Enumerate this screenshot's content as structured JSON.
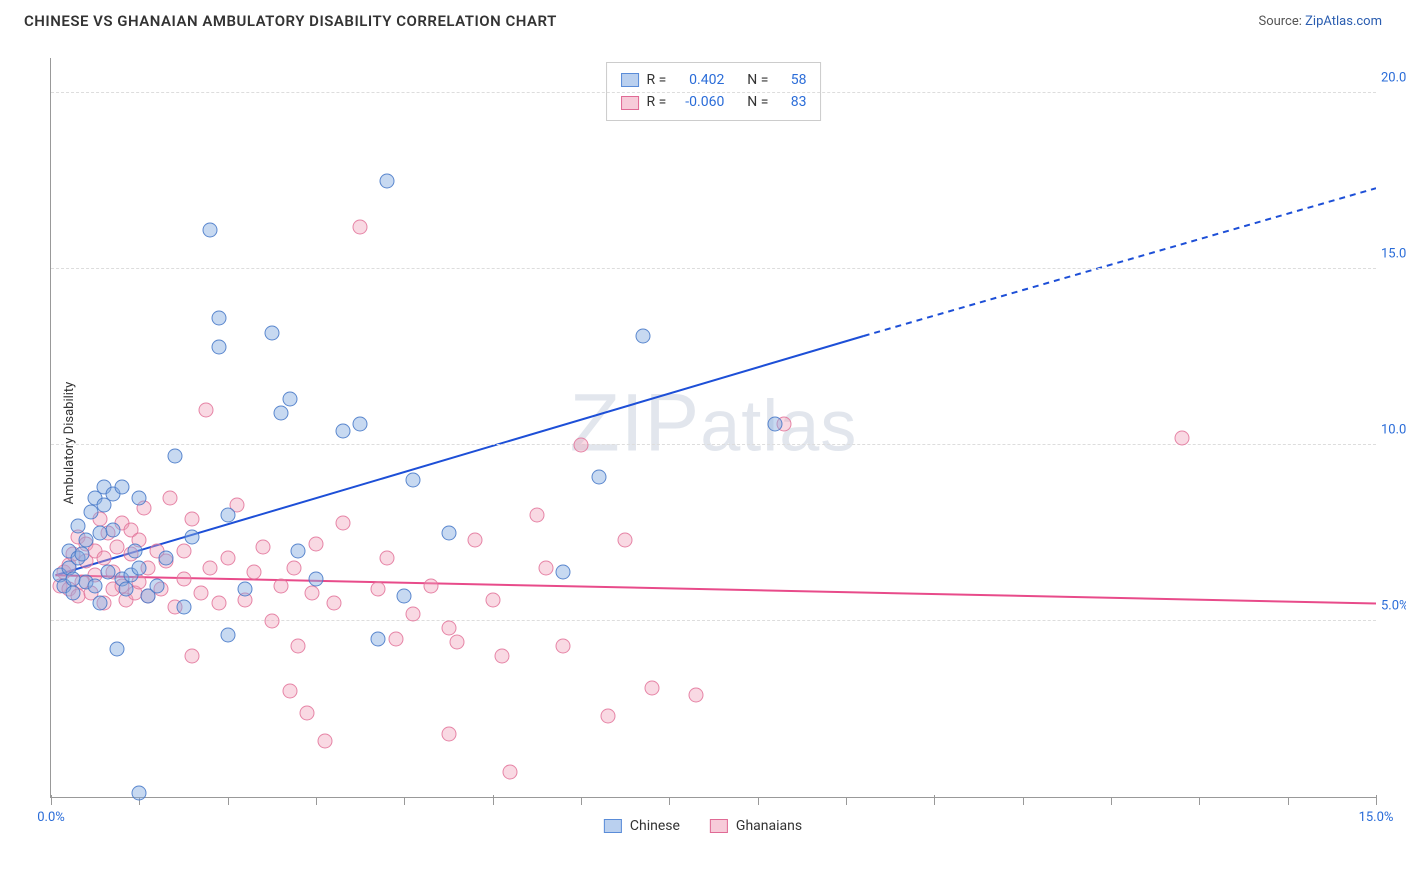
{
  "header": {
    "title": "CHINESE VS GHANAIAN AMBULATORY DISABILITY CORRELATION CHART",
    "source_prefix": "Source: ",
    "source_link": "ZipAtlas.com"
  },
  "watermark": {
    "zip": "ZIP",
    "atlas": "atlas"
  },
  "chart": {
    "type": "scatter",
    "ylabel": "Ambulatory Disability",
    "xlim": [
      0,
      15
    ],
    "ylim": [
      0,
      21
    ],
    "ytick_values": [
      5,
      10,
      15,
      20
    ],
    "ytick_labels": [
      "5.0%",
      "10.0%",
      "15.0%",
      "20.0%"
    ],
    "xtick_values": [
      0,
      5,
      10,
      15
    ],
    "xtick_labels": [
      "0.0%",
      "",
      "",
      "15.0%"
    ],
    "xtick_minor": [
      1,
      2,
      3,
      4,
      6,
      7,
      8,
      9,
      11,
      12,
      13,
      14
    ],
    "background_color": "#ffffff",
    "grid_color": "#dddddd",
    "marker_size": 15,
    "series": {
      "chinese": {
        "label": "Chinese",
        "fill_color": "#82aae1",
        "stroke_color": "#4678c8",
        "fill_opacity": 0.45,
        "R": "0.402",
        "N": "58",
        "trend": {
          "x1": 0.05,
          "y1": 6.3,
          "x2": 9.2,
          "y2": 13.1,
          "x3": 15.0,
          "y3": 17.3,
          "stroke": "#1d4fd7",
          "width": 2
        },
        "points": [
          [
            0.1,
            6.3
          ],
          [
            0.15,
            6.0
          ],
          [
            0.2,
            6.5
          ],
          [
            0.2,
            7.0
          ],
          [
            0.25,
            5.8
          ],
          [
            0.25,
            6.2
          ],
          [
            0.3,
            6.8
          ],
          [
            0.3,
            7.7
          ],
          [
            0.4,
            6.1
          ],
          [
            0.4,
            7.3
          ],
          [
            0.45,
            8.1
          ],
          [
            0.5,
            6.0
          ],
          [
            0.5,
            8.5
          ],
          [
            0.55,
            5.5
          ],
          [
            0.6,
            8.3
          ],
          [
            0.6,
            8.8
          ],
          [
            0.65,
            6.4
          ],
          [
            0.7,
            7.6
          ],
          [
            0.7,
            8.6
          ],
          [
            0.75,
            4.2
          ],
          [
            0.8,
            6.2
          ],
          [
            0.8,
            8.8
          ],
          [
            0.85,
            5.9
          ],
          [
            0.9,
            6.3
          ],
          [
            0.95,
            7.0
          ],
          [
            1.0,
            8.5
          ],
          [
            1.0,
            6.5
          ],
          [
            1.0,
            0.1
          ],
          [
            1.1,
            5.7
          ],
          [
            1.2,
            6.0
          ],
          [
            1.4,
            9.7
          ],
          [
            1.5,
            5.4
          ],
          [
            1.6,
            7.4
          ],
          [
            1.8,
            16.1
          ],
          [
            1.9,
            13.6
          ],
          [
            1.9,
            12.8
          ],
          [
            2.0,
            8.0
          ],
          [
            2.0,
            4.6
          ],
          [
            2.2,
            5.9
          ],
          [
            2.5,
            13.2
          ],
          [
            2.6,
            10.9
          ],
          [
            2.7,
            11.3
          ],
          [
            2.8,
            7.0
          ],
          [
            3.0,
            6.2
          ],
          [
            3.3,
            10.4
          ],
          [
            3.5,
            10.6
          ],
          [
            3.7,
            4.5
          ],
          [
            3.8,
            17.5
          ],
          [
            4.0,
            5.7
          ],
          [
            4.1,
            9.0
          ],
          [
            4.5,
            7.5
          ],
          [
            5.8,
            6.4
          ],
          [
            6.2,
            9.1
          ],
          [
            6.7,
            13.1
          ],
          [
            8.2,
            10.6
          ],
          [
            1.3,
            6.8
          ],
          [
            0.35,
            6.9
          ],
          [
            0.55,
            7.5
          ]
        ]
      },
      "ghanaian": {
        "label": "Ghanaians",
        "fill_color": "#f0a0b9",
        "stroke_color": "#e16e96",
        "fill_opacity": 0.4,
        "R": "-0.060",
        "N": "83",
        "trend": {
          "x1": 0.05,
          "y1": 6.3,
          "x2": 15.0,
          "y2": 5.5,
          "stroke": "#e84b8a",
          "width": 2
        },
        "points": [
          [
            0.1,
            6.0
          ],
          [
            0.15,
            6.4
          ],
          [
            0.2,
            5.9
          ],
          [
            0.2,
            6.6
          ],
          [
            0.25,
            6.9
          ],
          [
            0.3,
            5.7
          ],
          [
            0.3,
            7.4
          ],
          [
            0.35,
            6.1
          ],
          [
            0.4,
            6.7
          ],
          [
            0.4,
            7.2
          ],
          [
            0.45,
            5.8
          ],
          [
            0.5,
            7.0
          ],
          [
            0.5,
            6.3
          ],
          [
            0.55,
            7.9
          ],
          [
            0.6,
            5.5
          ],
          [
            0.6,
            6.8
          ],
          [
            0.65,
            7.5
          ],
          [
            0.7,
            5.9
          ],
          [
            0.7,
            6.4
          ],
          [
            0.75,
            7.1
          ],
          [
            0.8,
            6.0
          ],
          [
            0.8,
            7.8
          ],
          [
            0.85,
            5.6
          ],
          [
            0.9,
            6.9
          ],
          [
            0.9,
            7.6
          ],
          [
            0.95,
            5.8
          ],
          [
            1.0,
            7.3
          ],
          [
            1.0,
            6.1
          ],
          [
            1.05,
            8.2
          ],
          [
            1.1,
            5.7
          ],
          [
            1.1,
            6.5
          ],
          [
            1.2,
            7.0
          ],
          [
            1.25,
            5.9
          ],
          [
            1.3,
            6.7
          ],
          [
            1.35,
            8.5
          ],
          [
            1.4,
            5.4
          ],
          [
            1.5,
            7.0
          ],
          [
            1.5,
            6.2
          ],
          [
            1.6,
            4.0
          ],
          [
            1.6,
            7.9
          ],
          [
            1.7,
            5.8
          ],
          [
            1.75,
            11.0
          ],
          [
            1.8,
            6.5
          ],
          [
            1.9,
            5.5
          ],
          [
            2.0,
            6.8
          ],
          [
            2.1,
            8.3
          ],
          [
            2.2,
            5.6
          ],
          [
            2.3,
            6.4
          ],
          [
            2.4,
            7.1
          ],
          [
            2.5,
            5.0
          ],
          [
            2.6,
            6.0
          ],
          [
            2.7,
            3.0
          ],
          [
            2.75,
            6.5
          ],
          [
            2.8,
            4.3
          ],
          [
            2.9,
            2.4
          ],
          [
            2.95,
            5.8
          ],
          [
            3.0,
            7.2
          ],
          [
            3.1,
            1.6
          ],
          [
            3.2,
            5.5
          ],
          [
            3.3,
            7.8
          ],
          [
            3.5,
            16.2
          ],
          [
            3.7,
            5.9
          ],
          [
            3.8,
            6.8
          ],
          [
            3.9,
            4.5
          ],
          [
            4.1,
            5.2
          ],
          [
            4.3,
            6.0
          ],
          [
            4.5,
            1.8
          ],
          [
            4.5,
            4.8
          ],
          [
            4.6,
            4.4
          ],
          [
            4.8,
            7.3
          ],
          [
            5.0,
            5.6
          ],
          [
            5.1,
            4.0
          ],
          [
            5.2,
            0.7
          ],
          [
            5.5,
            8.0
          ],
          [
            5.6,
            6.5
          ],
          [
            5.8,
            4.3
          ],
          [
            6.0,
            10.0
          ],
          [
            6.3,
            2.3
          ],
          [
            6.5,
            7.3
          ],
          [
            6.8,
            3.1
          ],
          [
            7.3,
            2.9
          ],
          [
            8.3,
            10.6
          ],
          [
            12.8,
            10.2
          ]
        ]
      }
    },
    "legend_rn": {
      "r_label": "R =",
      "n_label": "N ="
    },
    "bottom_legend": {
      "chinese": "Chinese",
      "ghanaian": "Ghanaians"
    }
  }
}
